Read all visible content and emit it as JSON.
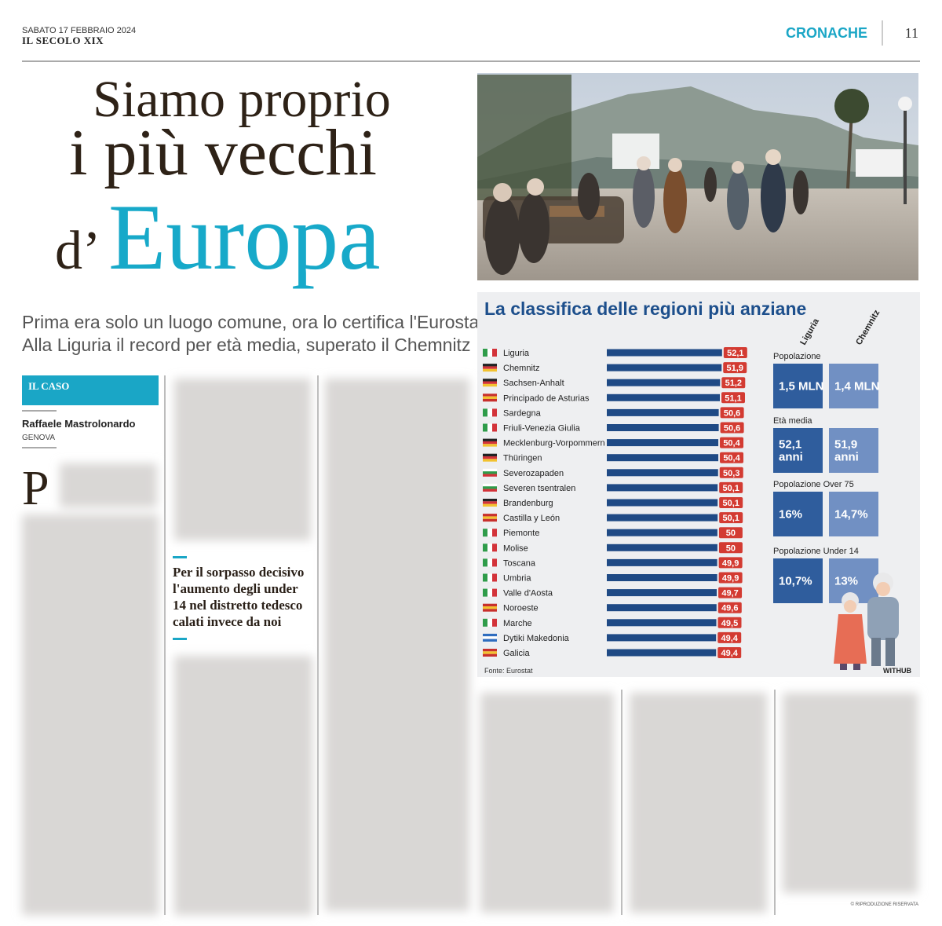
{
  "header": {
    "date": "SABATO 17 FEBBRAIO 2024",
    "masthead": "IL SECOLO XIX",
    "section": "CRONACHE",
    "page_number": "11"
  },
  "headline": {
    "line1": "Siamo proprio",
    "line2": "i più vecchi",
    "prefix": "d’",
    "accent": "Europa"
  },
  "subtitle": {
    "line1": "Prima era solo un luogo comune, ora lo certifica l'Eurostat",
    "line2": "Alla Liguria il record per età media, superato il Chemnitz"
  },
  "article": {
    "kicker": "IL CASO",
    "author": "Raffaele Mastrolonardo",
    "location": "GENOVA",
    "drop_cap": "P",
    "pull_quote": [
      "Per il sorpasso decisivo",
      "l'aumento degli under",
      "14 nel distretto tedesco",
      "calati invece da noi"
    ],
    "copyright": "© RIPRODUZIONE RISERVATA"
  },
  "chart_data": {
    "type": "hbar",
    "title": "La classifica delle regioni più anziane",
    "categories": [
      "Liguria",
      "Chemnitz",
      "Sachsen-Anhalt",
      "Principado de Asturias",
      "Sardegna",
      "Friuli-Venezia Giulia",
      "Mecklenburg-Vorpommern",
      "Thüringen",
      "Severozapaden",
      "Severen tsentralen",
      "Brandenburg",
      "Castilla y León",
      "Piemonte",
      "Molise",
      "Toscana",
      "Umbria",
      "Valle d'Aosta",
      "Noroeste",
      "Marche",
      "Dytiki Makedonia",
      "Galicia"
    ],
    "values": [
      52.1,
      51.9,
      51.2,
      51.1,
      50.6,
      50.6,
      50.4,
      50.4,
      50.3,
      50.1,
      50.1,
      50.1,
      50,
      50,
      49.9,
      49.9,
      49.7,
      49.6,
      49.5,
      49.4,
      49.4
    ],
    "value_labels": [
      "52,1",
      "51,9",
      "51,2",
      "51,1",
      "50,6",
      "50,6",
      "50,4",
      "50,4",
      "50,3",
      "50,1",
      "50,1",
      "50,1",
      "50",
      "50",
      "49,9",
      "49,9",
      "49,7",
      "49,6",
      "49,5",
      "49,4",
      "49,4"
    ],
    "xlim": [
      0,
      55
    ],
    "color": "#1f4a85",
    "label_color": "#d33b32",
    "source": "Fonte: Eurostat",
    "credit": "WITHUB"
  },
  "side_panel": {
    "columns": [
      "Liguria",
      "Chemnitz"
    ],
    "rows": [
      {
        "label": "Popolazione",
        "cells": [
          [
            "1,5 MLN"
          ],
          [
            "1,4 MLN"
          ]
        ]
      },
      {
        "label": "Età media",
        "cells": [
          [
            "52,1",
            "anni"
          ],
          [
            "51,9",
            "anni"
          ]
        ]
      },
      {
        "label": "Popolazione Over 75",
        "cells": [
          [
            "16%"
          ],
          [
            "14,7%"
          ]
        ]
      },
      {
        "label": "Popolazione Under 14",
        "cells": [
          [
            "10,7%"
          ],
          [
            "13%"
          ]
        ]
      }
    ]
  }
}
